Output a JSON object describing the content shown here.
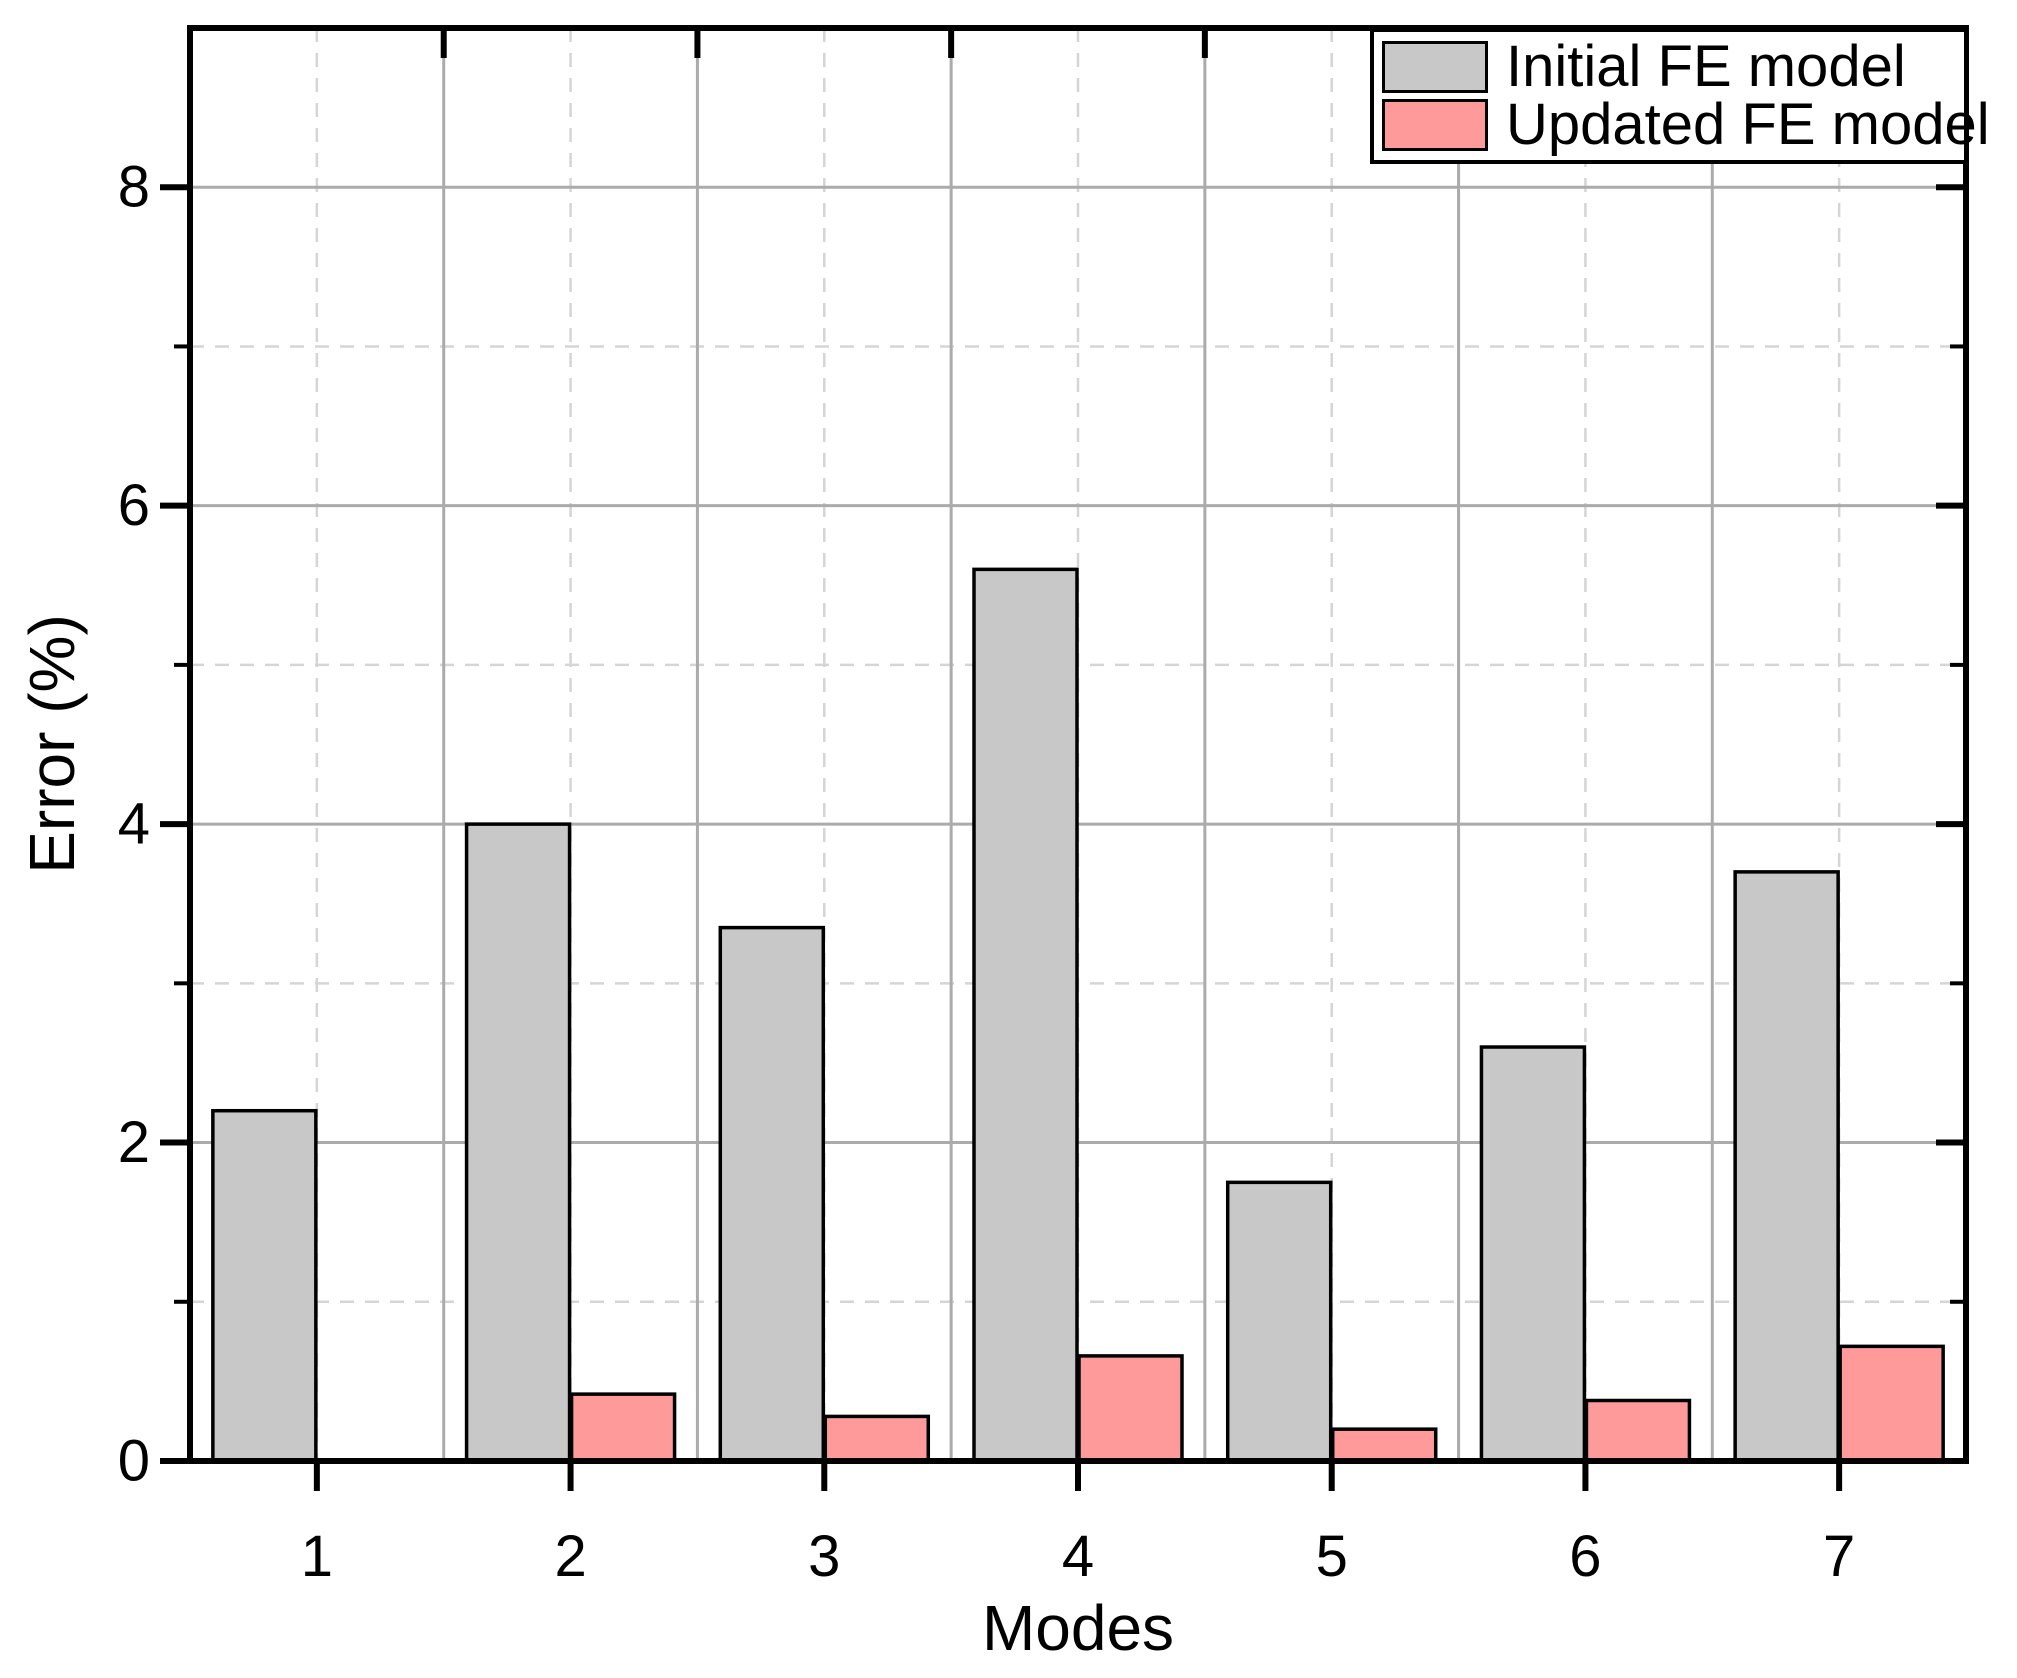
{
  "figure": {
    "background": "#ffffff"
  },
  "chart_data": {
    "type": "bar",
    "title": "",
    "xlabel": "Modes",
    "ylabel": "Error (%)",
    "categories": [
      "1",
      "2",
      "3",
      "4",
      "5",
      "6",
      "7"
    ],
    "series": [
      {
        "name": "Initial FE model",
        "color": "#c8c8c8",
        "values": [
          2.2,
          4.0,
          3.35,
          5.6,
          1.75,
          2.6,
          3.7
        ]
      },
      {
        "name": "Updated FE model",
        "color": "#ff9a9a",
        "values": [
          0,
          0.42,
          0.28,
          0.66,
          0.2,
          0.38,
          0.72
        ]
      }
    ],
    "ylim": [
      0,
      9
    ],
    "yticks_major": [
      0,
      2,
      4,
      6,
      8
    ],
    "yticks_minor": [
      1,
      3,
      5,
      7
    ],
    "grid": {
      "major": "solid gray",
      "minor": "dashed light-gray",
      "vertical_major_at": "category boundaries",
      "vertical_minor_at": "category centers"
    },
    "legend_position": "top-right",
    "bar_outline": "#000000",
    "axis_color": "#000000"
  }
}
